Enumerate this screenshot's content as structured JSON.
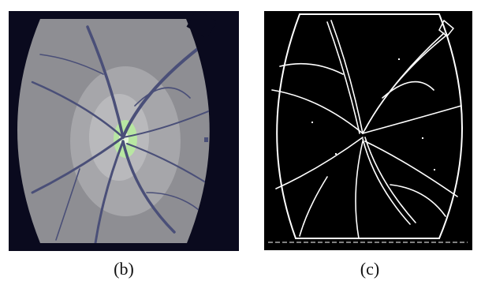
{
  "figure": {
    "panels": [
      {
        "caption": "(b)",
        "content": "segmented-fundus-image"
      },
      {
        "caption": "(c)",
        "content": "vessel-edge-map"
      }
    ]
  },
  "colors": {
    "background": "#ffffff",
    "fundus_dark": "#0a0a1e",
    "fundus_gray": "#8e8e93",
    "fundus_light": "#b7b7b9",
    "vessel_blue": "#4a4f78",
    "optic_disc_green": "#b8e6a2",
    "edge_black": "#000000",
    "edge_white": "#ffffff"
  }
}
